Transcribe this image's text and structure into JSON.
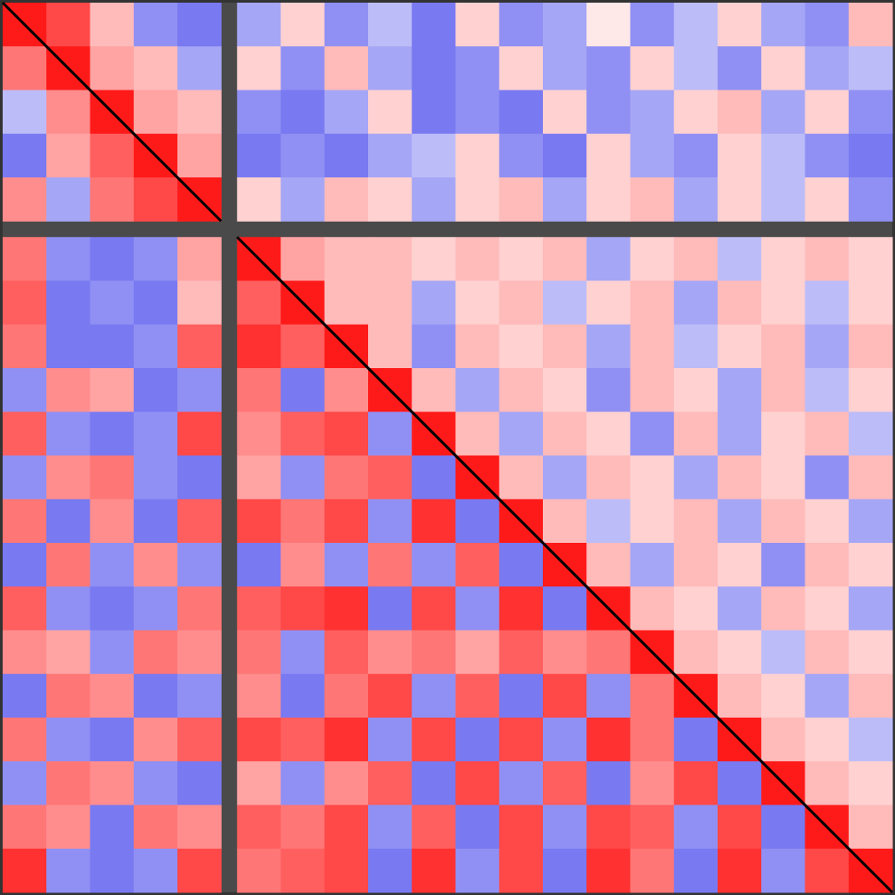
{
  "chart_data": {
    "type": "heatmap",
    "vlim": [
      -1,
      1
    ],
    "colors": [
      "#2020e8",
      "#ffffff",
      "#ff1a1a"
    ],
    "groups": [
      5,
      15
    ],
    "matrix": [
      [
        1,
        0.8,
        0.3,
        -0.5,
        -0.6,
        -0.4,
        0.2,
        -0.5,
        -0.3,
        -0.6,
        0.2,
        -0.5,
        -0.4,
        0.1,
        -0.5,
        -0.3,
        0.2,
        -0.4,
        -0.5,
        0.3
      ],
      [
        0.6,
        1,
        0.4,
        0.3,
        -0.4,
        0.2,
        -0.5,
        0.3,
        -0.4,
        -0.6,
        -0.5,
        0.2,
        -0.4,
        -0.5,
        0.2,
        -0.3,
        -0.5,
        0.2,
        -0.4,
        -0.3
      ],
      [
        -0.3,
        0.5,
        1,
        0.4,
        0.3,
        -0.5,
        -0.6,
        -0.4,
        0.2,
        -0.6,
        -0.5,
        -0.6,
        0.2,
        -0.5,
        -0.4,
        0.2,
        0.3,
        -0.4,
        0.2,
        -0.5
      ],
      [
        -0.6,
        0.4,
        0.7,
        1,
        0.4,
        -0.6,
        -0.5,
        -0.6,
        -0.4,
        -0.3,
        0.2,
        -0.5,
        -0.6,
        0.2,
        -0.4,
        -0.5,
        0.2,
        -0.3,
        -0.5,
        -0.6
      ],
      [
        0.5,
        -0.4,
        0.6,
        0.8,
        1,
        0.2,
        -0.4,
        0.3,
        0.2,
        -0.4,
        0.2,
        0.3,
        -0.4,
        0.2,
        0.3,
        -0.4,
        0.2,
        -0.3,
        0.2,
        -0.5
      ],
      [
        0.6,
        -0.5,
        -0.6,
        -0.5,
        0.4,
        1,
        0.4,
        0.3,
        0.3,
        0.2,
        0.3,
        0.2,
        0.3,
        -0.4,
        0.2,
        0.3,
        -0.3,
        0.2,
        0.3,
        0.2
      ],
      [
        0.7,
        -0.6,
        -0.5,
        -0.6,
        0.3,
        0.7,
        1,
        0.3,
        0.3,
        -0.4,
        0.2,
        0.3,
        -0.3,
        0.2,
        0.3,
        -0.4,
        0.3,
        0.2,
        -0.3,
        0.2
      ],
      [
        0.6,
        -0.6,
        -0.6,
        -0.5,
        0.7,
        0.9,
        0.7,
        1,
        0.3,
        -0.5,
        0.3,
        0.2,
        0.3,
        -0.4,
        0.3,
        -0.3,
        0.2,
        0.3,
        -0.4,
        0.3
      ],
      [
        -0.5,
        0.5,
        0.4,
        -0.6,
        -0.5,
        0.6,
        -0.6,
        0.5,
        1,
        0.3,
        -0.4,
        0.3,
        0.2,
        -0.5,
        0.3,
        0.2,
        -0.4,
        0.3,
        -0.3,
        0.2
      ],
      [
        0.7,
        -0.5,
        -0.6,
        -0.5,
        0.8,
        0.5,
        0.7,
        0.8,
        -0.5,
        1,
        0.3,
        -0.4,
        0.3,
        0.2,
        -0.5,
        0.3,
        -0.4,
        0.2,
        0.3,
        -0.3
      ],
      [
        -0.5,
        0.5,
        0.6,
        -0.5,
        -0.6,
        0.4,
        -0.5,
        0.6,
        0.7,
        -0.6,
        1,
        0.3,
        -0.4,
        0.3,
        0.2,
        -0.4,
        0.3,
        0.2,
        -0.5,
        0.3
      ],
      [
        0.6,
        -0.6,
        0.5,
        -0.6,
        0.7,
        0.8,
        0.6,
        0.8,
        -0.5,
        0.9,
        -0.6,
        1,
        0.3,
        -0.3,
        0.2,
        0.3,
        -0.4,
        0.3,
        0.2,
        -0.4
      ],
      [
        -0.6,
        0.6,
        -0.5,
        0.5,
        -0.5,
        -0.6,
        0.5,
        -0.5,
        0.6,
        -0.5,
        0.7,
        -0.6,
        1,
        0.3,
        -0.4,
        0.3,
        0.2,
        -0.5,
        0.3,
        0.2
      ],
      [
        0.7,
        -0.5,
        -0.6,
        -0.5,
        0.6,
        0.7,
        0.8,
        0.9,
        -0.6,
        0.8,
        -0.5,
        0.9,
        -0.6,
        1,
        0.3,
        0.2,
        -0.4,
        0.3,
        0.2,
        -0.4
      ],
      [
        0.5,
        0.4,
        -0.5,
        0.6,
        0.5,
        0.6,
        -0.5,
        0.7,
        0.5,
        0.6,
        0.4,
        0.7,
        0.5,
        0.6,
        1,
        0.3,
        0.2,
        -0.3,
        0.3,
        0.2
      ],
      [
        -0.6,
        0.6,
        0.5,
        -0.6,
        -0.5,
        0.5,
        -0.6,
        0.6,
        0.8,
        -0.5,
        0.7,
        -0.6,
        0.8,
        -0.5,
        0.6,
        1,
        0.3,
        0.2,
        -0.4,
        0.3
      ],
      [
        0.6,
        -0.5,
        -0.6,
        0.5,
        0.7,
        0.8,
        0.7,
        0.9,
        -0.5,
        0.8,
        -0.6,
        0.8,
        -0.5,
        0.9,
        0.6,
        -0.6,
        1,
        0.3,
        0.2,
        -0.3
      ],
      [
        -0.5,
        0.6,
        0.5,
        -0.5,
        -0.6,
        0.4,
        -0.5,
        0.5,
        0.7,
        -0.6,
        0.8,
        -0.5,
        0.7,
        -0.6,
        0.5,
        0.8,
        -0.6,
        1,
        0.3,
        0.2
      ],
      [
        0.6,
        0.5,
        -0.6,
        0.6,
        0.5,
        0.7,
        0.6,
        0.8,
        -0.5,
        0.7,
        -0.6,
        0.8,
        -0.5,
        0.8,
        0.7,
        -0.5,
        0.8,
        -0.6,
        1,
        0.3
      ],
      [
        0.9,
        -0.5,
        -0.6,
        -0.5,
        0.8,
        0.6,
        0.7,
        0.8,
        -0.6,
        0.9,
        -0.5,
        0.8,
        -0.6,
        0.9,
        0.6,
        -0.6,
        0.9,
        -0.5,
        0.8,
        1
      ]
    ]
  }
}
